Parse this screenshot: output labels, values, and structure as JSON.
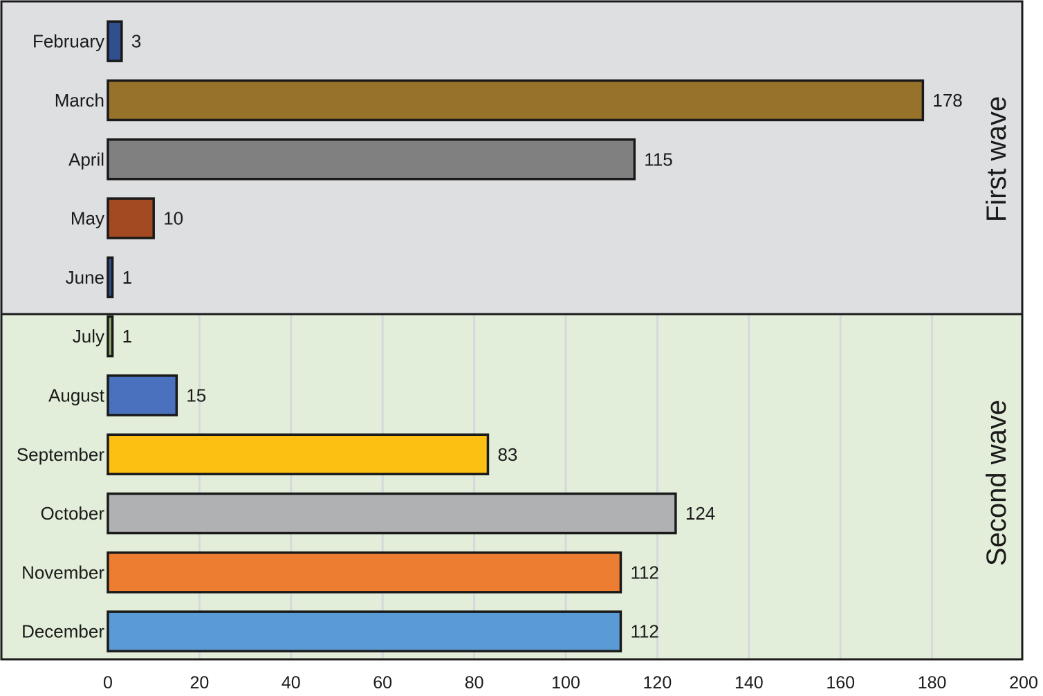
{
  "chart_data": {
    "type": "bar",
    "orientation": "horizontal",
    "categories": [
      "February",
      "March",
      "April",
      "May",
      "June",
      "July",
      "August",
      "September",
      "October",
      "November",
      "December"
    ],
    "values": [
      3,
      178,
      115,
      10,
      1,
      1,
      15,
      83,
      124,
      112,
      112
    ],
    "colors": [
      "#2f4f8f",
      "#97722b",
      "#808080",
      "#a34a22",
      "#2f4f8f",
      "#8fa870",
      "#4a71bd",
      "#fcc012",
      "#b0b1b3",
      "#ed7d31",
      "#5b9bd5"
    ],
    "xlim": [
      0,
      200
    ],
    "xticks": [
      "0",
      "20",
      "40",
      "60",
      "80",
      "100",
      "120",
      "140",
      "160",
      "180",
      "200"
    ],
    "grid": true,
    "groups": [
      {
        "label": "First wave",
        "start": 0,
        "end": 4,
        "background": "#dedfe1"
      },
      {
        "label": "Second wave",
        "start": 5,
        "end": 10,
        "background": "#e2eed9"
      }
    ],
    "xlabel": "",
    "ylabel": "",
    "title": ""
  }
}
